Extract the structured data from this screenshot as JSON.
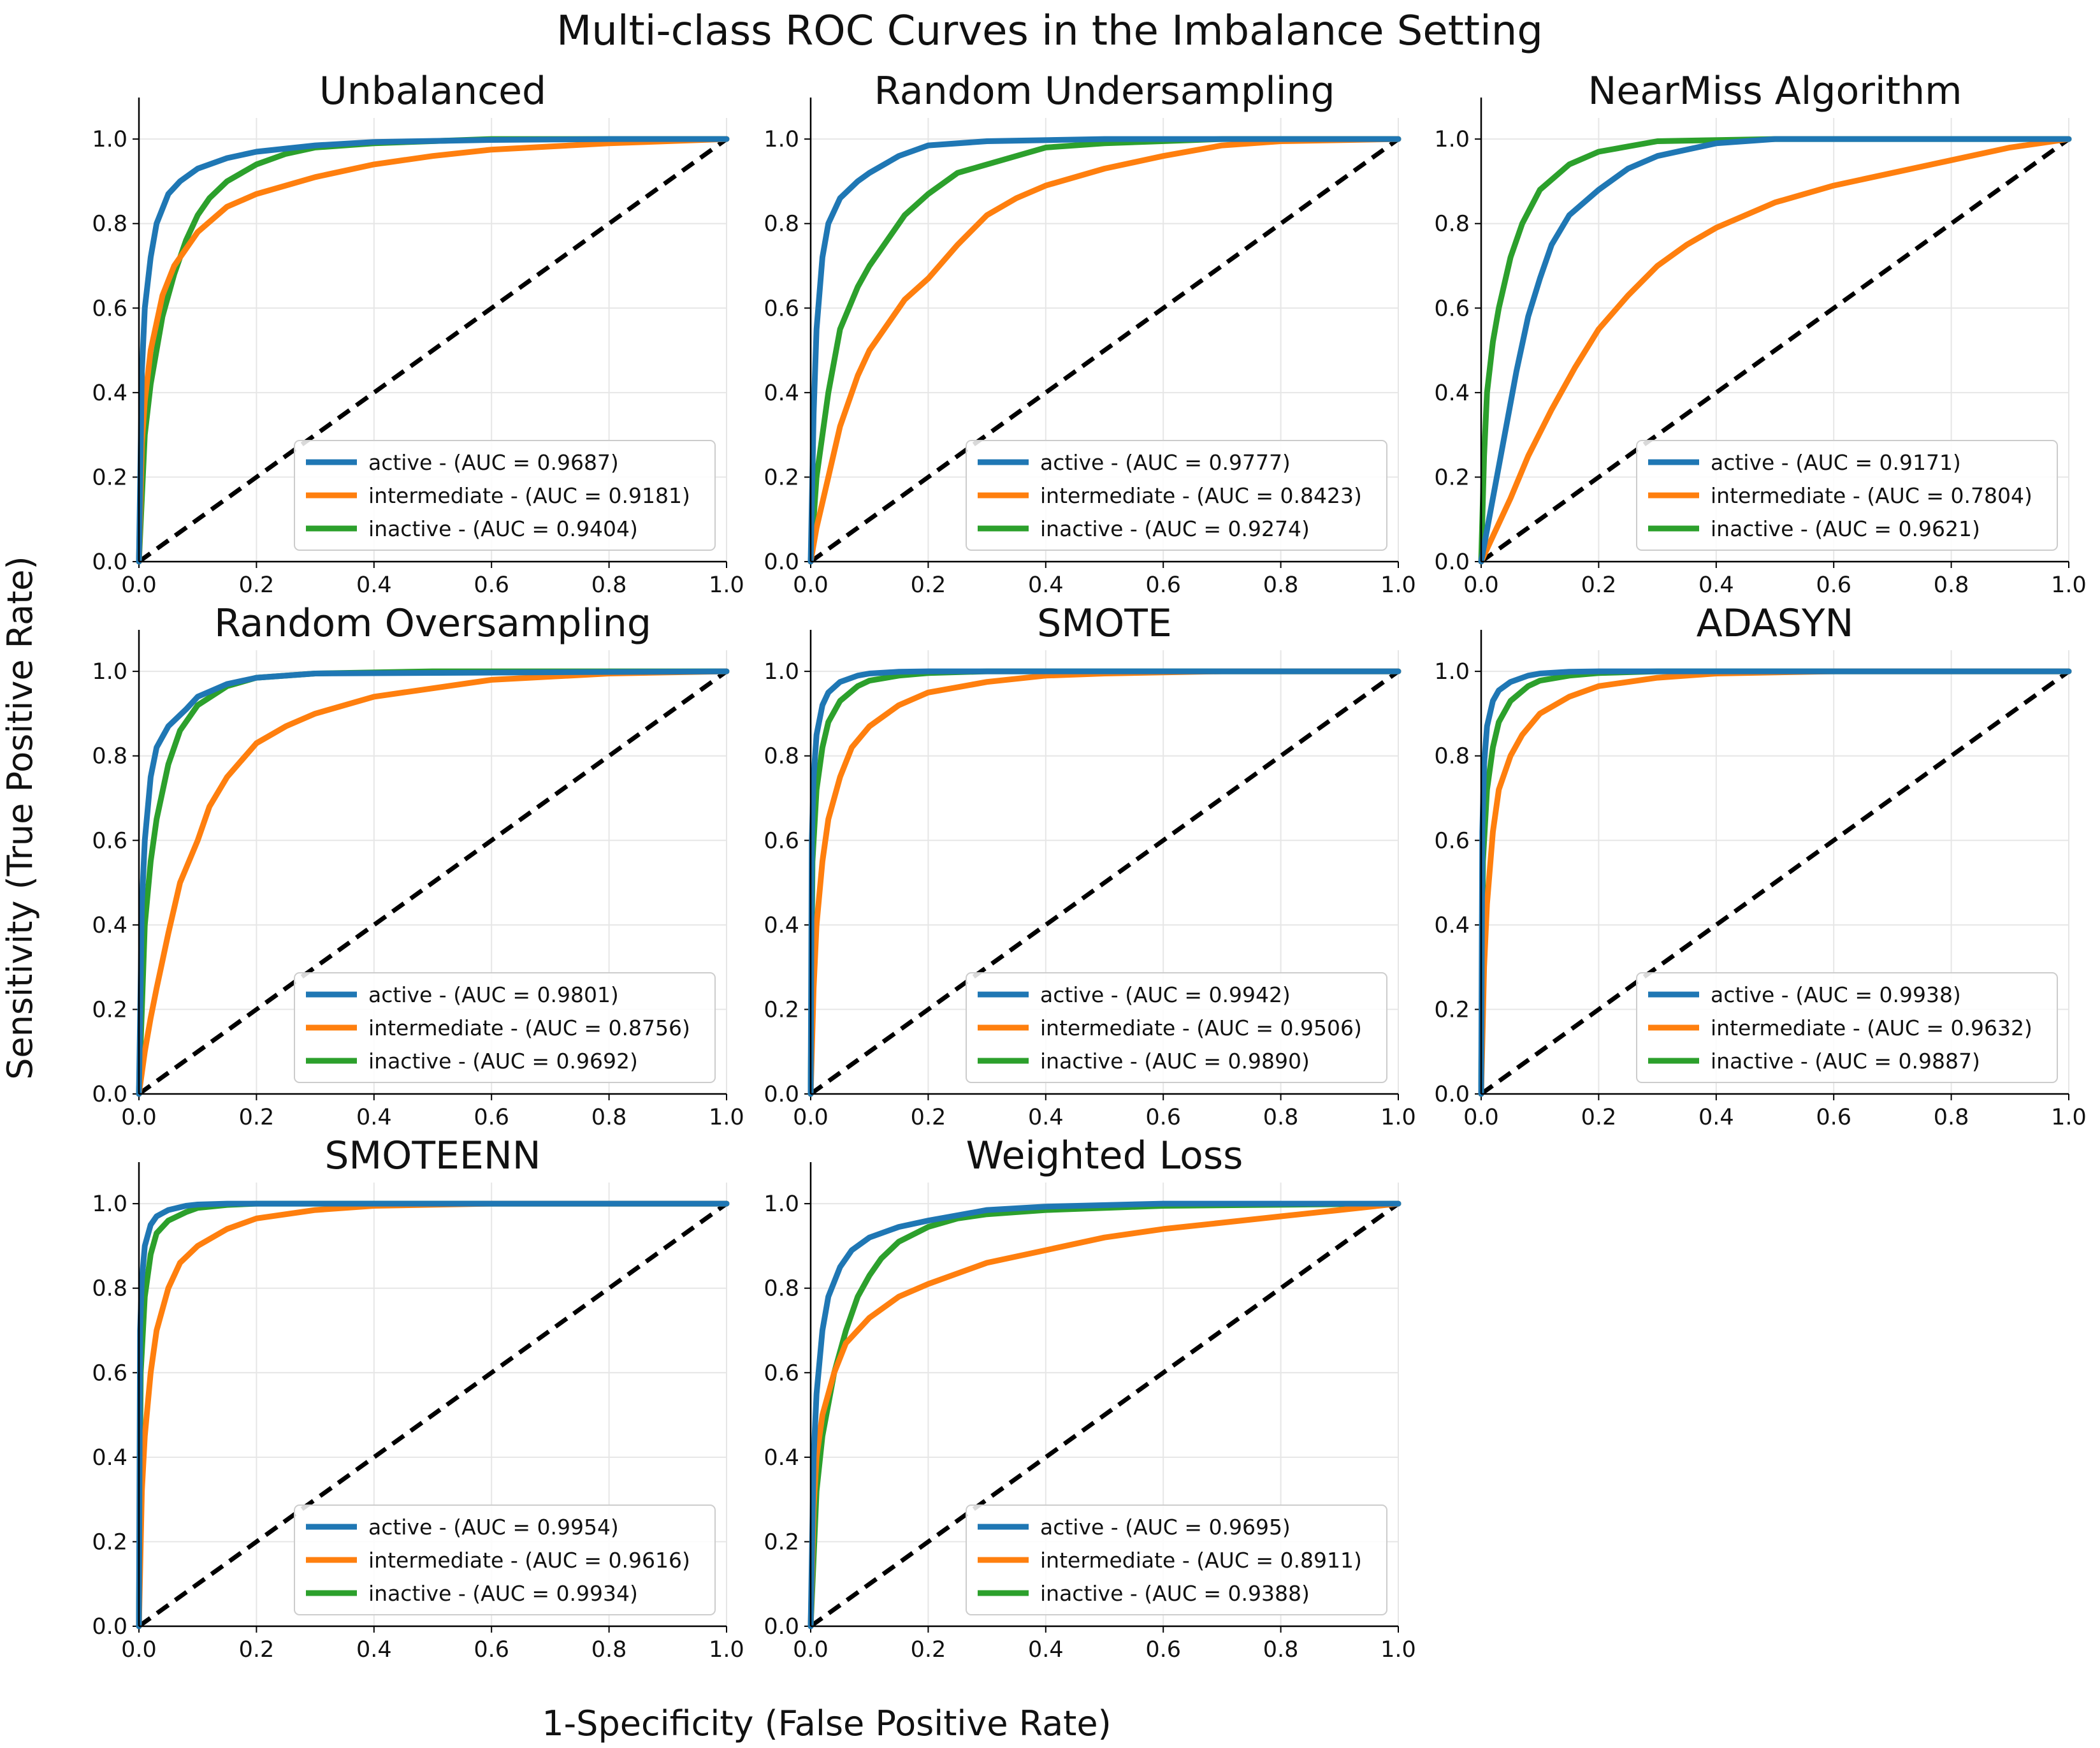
{
  "figure": {
    "title": "Multi-class ROC Curves in the Imbalance Setting",
    "xlabel": "1-Specificity (False Positive Rate)",
    "ylabel": "Sensitivity (True Positive Rate)"
  },
  "colors": {
    "active": "#1f77b4",
    "intermediate": "#ff7f0e",
    "inactive": "#2ca02c",
    "chance": "#000000",
    "grid": "#e6e6e6"
  },
  "chart_data": [
    {
      "type": "line",
      "title": "Unbalanced",
      "xlim": [
        0,
        1
      ],
      "ylim": [
        0,
        1.05
      ],
      "xticks": [
        "0.0",
        "0.2",
        "0.4",
        "0.6",
        "0.8",
        "1.0"
      ],
      "yticks": [
        "0.0",
        "0.2",
        "0.4",
        "0.6",
        "0.8",
        "1.0"
      ],
      "grid": true,
      "legend": "lower-right",
      "series": [
        {
          "name": "active - (AUC = 0.9687)",
          "x": [
            0,
            0.005,
            0.01,
            0.02,
            0.03,
            0.05,
            0.07,
            0.1,
            0.15,
            0.2,
            0.3,
            0.4,
            0.6,
            0.8,
            1
          ],
          "y": [
            0,
            0.45,
            0.6,
            0.72,
            0.8,
            0.87,
            0.9,
            0.93,
            0.955,
            0.97,
            0.985,
            0.993,
            0.998,
            1,
            1
          ]
        },
        {
          "name": "intermediate - (AUC = 0.9181)",
          "x": [
            0,
            0.005,
            0.01,
            0.02,
            0.04,
            0.06,
            0.1,
            0.15,
            0.2,
            0.3,
            0.4,
            0.5,
            0.6,
            0.8,
            1
          ],
          "y": [
            0,
            0.28,
            0.38,
            0.5,
            0.63,
            0.7,
            0.78,
            0.84,
            0.87,
            0.91,
            0.94,
            0.96,
            0.975,
            0.99,
            1
          ]
        },
        {
          "name": "inactive - (AUC = 0.9404)",
          "x": [
            0,
            0.01,
            0.02,
            0.04,
            0.06,
            0.08,
            0.1,
            0.12,
            0.15,
            0.2,
            0.25,
            0.3,
            0.4,
            0.6,
            1
          ],
          "y": [
            0,
            0.3,
            0.42,
            0.58,
            0.68,
            0.76,
            0.82,
            0.86,
            0.9,
            0.94,
            0.965,
            0.98,
            0.99,
            1,
            1
          ]
        }
      ]
    },
    {
      "type": "line",
      "title": "Random Undersampling",
      "xlim": [
        0,
        1
      ],
      "ylim": [
        0,
        1.05
      ],
      "xticks": [
        "0.0",
        "0.2",
        "0.4",
        "0.6",
        "0.8",
        "1.0"
      ],
      "yticks": [
        "0.0",
        "0.2",
        "0.4",
        "0.6",
        "0.8",
        "1.0"
      ],
      "grid": true,
      "legend": "lower-right",
      "series": [
        {
          "name": "active - (AUC = 0.9777)",
          "x": [
            0,
            0.005,
            0.01,
            0.02,
            0.03,
            0.05,
            0.08,
            0.1,
            0.15,
            0.2,
            0.3,
            0.5,
            1
          ],
          "y": [
            0,
            0.35,
            0.55,
            0.72,
            0.8,
            0.86,
            0.9,
            0.92,
            0.96,
            0.985,
            0.995,
            1,
            1
          ]
        },
        {
          "name": "intermediate - (AUC = 0.8423)",
          "x": [
            0,
            0.01,
            0.03,
            0.05,
            0.08,
            0.1,
            0.13,
            0.16,
            0.2,
            0.25,
            0.3,
            0.35,
            0.4,
            0.5,
            0.6,
            0.7,
            0.8,
            1
          ],
          "y": [
            0,
            0.08,
            0.2,
            0.32,
            0.44,
            0.5,
            0.56,
            0.62,
            0.67,
            0.75,
            0.82,
            0.86,
            0.89,
            0.93,
            0.96,
            0.985,
            0.995,
            1
          ]
        },
        {
          "name": "inactive - (AUC = 0.9274)",
          "x": [
            0,
            0.01,
            0.03,
            0.05,
            0.08,
            0.1,
            0.13,
            0.16,
            0.2,
            0.25,
            0.3,
            0.35,
            0.4,
            0.5,
            0.7,
            1
          ],
          "y": [
            0,
            0.2,
            0.4,
            0.55,
            0.65,
            0.7,
            0.76,
            0.82,
            0.87,
            0.92,
            0.94,
            0.96,
            0.98,
            0.99,
            1,
            1
          ]
        }
      ]
    },
    {
      "type": "line",
      "title": "NearMiss Algorithm",
      "xlim": [
        0,
        1
      ],
      "ylim": [
        0,
        1.05
      ],
      "xticks": [
        "0.0",
        "0.2",
        "0.4",
        "0.6",
        "0.8",
        "1.0"
      ],
      "yticks": [
        "0.0",
        "0.2",
        "0.4",
        "0.6",
        "0.8",
        "1.0"
      ],
      "grid": true,
      "legend": "lower-right",
      "series": [
        {
          "name": "active - (AUC = 0.9171)",
          "x": [
            0,
            0.02,
            0.04,
            0.06,
            0.08,
            0.1,
            0.12,
            0.15,
            0.2,
            0.25,
            0.3,
            0.4,
            0.5,
            1
          ],
          "y": [
            0,
            0.15,
            0.3,
            0.45,
            0.58,
            0.67,
            0.75,
            0.82,
            0.88,
            0.93,
            0.96,
            0.99,
            1,
            1
          ]
        },
        {
          "name": "intermediate - (AUC = 0.7804)",
          "x": [
            0,
            0.02,
            0.05,
            0.08,
            0.12,
            0.16,
            0.2,
            0.25,
            0.3,
            0.35,
            0.4,
            0.5,
            0.6,
            0.7,
            0.8,
            0.9,
            0.95,
            1
          ],
          "y": [
            0,
            0.06,
            0.15,
            0.25,
            0.36,
            0.46,
            0.55,
            0.63,
            0.7,
            0.75,
            0.79,
            0.85,
            0.89,
            0.92,
            0.95,
            0.98,
            0.99,
            1
          ]
        },
        {
          "name": "inactive - (AUC = 0.9621)",
          "x": [
            0,
            0.005,
            0.01,
            0.02,
            0.03,
            0.05,
            0.07,
            0.1,
            0.15,
            0.2,
            0.3,
            0.5,
            1
          ],
          "y": [
            0,
            0.25,
            0.4,
            0.52,
            0.6,
            0.72,
            0.8,
            0.88,
            0.94,
            0.97,
            0.995,
            1,
            1
          ]
        }
      ]
    },
    {
      "type": "line",
      "title": "Random Oversampling",
      "xlim": [
        0,
        1
      ],
      "ylim": [
        0,
        1.05
      ],
      "xticks": [
        "0.0",
        "0.2",
        "0.4",
        "0.6",
        "0.8",
        "1.0"
      ],
      "yticks": [
        "0.0",
        "0.2",
        "0.4",
        "0.6",
        "0.8",
        "1.0"
      ],
      "grid": true,
      "legend": "lower-right",
      "series": [
        {
          "name": "active - (AUC = 0.9801)",
          "x": [
            0,
            0.005,
            0.01,
            0.02,
            0.03,
            0.05,
            0.08,
            0.1,
            0.15,
            0.2,
            0.3,
            1
          ],
          "y": [
            0,
            0.45,
            0.6,
            0.75,
            0.82,
            0.87,
            0.91,
            0.94,
            0.97,
            0.985,
            0.995,
            1
          ]
        },
        {
          "name": "intermediate - (AUC = 0.8756)",
          "x": [
            0,
            0.01,
            0.02,
            0.03,
            0.05,
            0.07,
            0.1,
            0.12,
            0.15,
            0.2,
            0.25,
            0.3,
            0.4,
            0.5,
            0.6,
            0.8,
            1
          ],
          "y": [
            0,
            0.1,
            0.18,
            0.25,
            0.38,
            0.5,
            0.6,
            0.68,
            0.75,
            0.83,
            0.87,
            0.9,
            0.94,
            0.96,
            0.98,
            0.995,
            1
          ]
        },
        {
          "name": "inactive - (AUC = 0.9692)",
          "x": [
            0,
            0.01,
            0.02,
            0.03,
            0.05,
            0.07,
            0.1,
            0.15,
            0.2,
            0.3,
            0.5,
            1
          ],
          "y": [
            0,
            0.4,
            0.55,
            0.65,
            0.78,
            0.86,
            0.92,
            0.965,
            0.985,
            0.995,
            1,
            1
          ]
        }
      ]
    },
    {
      "type": "line",
      "title": "SMOTE",
      "xlim": [
        0,
        1
      ],
      "ylim": [
        0,
        1.05
      ],
      "xticks": [
        "0.0",
        "0.2",
        "0.4",
        "0.6",
        "0.8",
        "1.0"
      ],
      "yticks": [
        "0.0",
        "0.2",
        "0.4",
        "0.6",
        "0.8",
        "1.0"
      ],
      "grid": true,
      "legend": "lower-right",
      "series": [
        {
          "name": "active - (AUC = 0.9942)",
          "x": [
            0,
            0.002,
            0.005,
            0.01,
            0.02,
            0.03,
            0.05,
            0.08,
            0.1,
            0.15,
            0.2,
            1
          ],
          "y": [
            0,
            0.6,
            0.75,
            0.85,
            0.92,
            0.95,
            0.975,
            0.99,
            0.995,
            0.999,
            1,
            1
          ]
        },
        {
          "name": "intermediate - (AUC = 0.9506)",
          "x": [
            0,
            0.005,
            0.01,
            0.02,
            0.03,
            0.05,
            0.07,
            0.1,
            0.15,
            0.2,
            0.3,
            0.4,
            0.5,
            0.7,
            1
          ],
          "y": [
            0,
            0.25,
            0.4,
            0.55,
            0.65,
            0.75,
            0.82,
            0.87,
            0.92,
            0.95,
            0.975,
            0.99,
            0.995,
            1,
            1
          ]
        },
        {
          "name": "inactive - (AUC = 0.9890)",
          "x": [
            0,
            0.003,
            0.01,
            0.02,
            0.03,
            0.05,
            0.08,
            0.1,
            0.15,
            0.2,
            0.3,
            1
          ],
          "y": [
            0,
            0.55,
            0.72,
            0.82,
            0.88,
            0.93,
            0.965,
            0.978,
            0.99,
            0.996,
            1,
            1
          ]
        }
      ]
    },
    {
      "type": "line",
      "title": "ADASYN",
      "xlim": [
        0,
        1
      ],
      "ylim": [
        0,
        1.05
      ],
      "xticks": [
        "0.0",
        "0.2",
        "0.4",
        "0.6",
        "0.8",
        "1.0"
      ],
      "yticks": [
        "0.0",
        "0.2",
        "0.4",
        "0.6",
        "0.8",
        "1.0"
      ],
      "grid": true,
      "legend": "lower-right",
      "series": [
        {
          "name": "active - (AUC = 0.9938)",
          "x": [
            0,
            0.002,
            0.005,
            0.01,
            0.02,
            0.03,
            0.05,
            0.08,
            0.1,
            0.15,
            0.2,
            1
          ],
          "y": [
            0,
            0.62,
            0.78,
            0.87,
            0.93,
            0.955,
            0.975,
            0.99,
            0.995,
            0.999,
            1,
            1
          ]
        },
        {
          "name": "intermediate - (AUC = 0.9632)",
          "x": [
            0,
            0.005,
            0.01,
            0.02,
            0.03,
            0.05,
            0.07,
            0.1,
            0.15,
            0.2,
            0.3,
            0.4,
            0.6,
            1
          ],
          "y": [
            0,
            0.3,
            0.45,
            0.62,
            0.72,
            0.8,
            0.85,
            0.9,
            0.94,
            0.965,
            0.985,
            0.995,
            1,
            1
          ]
        },
        {
          "name": "inactive - (AUC = 0.9887)",
          "x": [
            0,
            0.003,
            0.01,
            0.02,
            0.03,
            0.05,
            0.08,
            0.1,
            0.15,
            0.2,
            0.3,
            1
          ],
          "y": [
            0,
            0.55,
            0.72,
            0.82,
            0.88,
            0.93,
            0.965,
            0.978,
            0.99,
            0.996,
            1,
            1
          ]
        }
      ]
    },
    {
      "type": "line",
      "title": "SMOTEENN",
      "xlim": [
        0,
        1
      ],
      "ylim": [
        0,
        1.05
      ],
      "xticks": [
        "0.0",
        "0.2",
        "0.4",
        "0.6",
        "0.8",
        "1.0"
      ],
      "yticks": [
        "0.0",
        "0.2",
        "0.4",
        "0.6",
        "0.8",
        "1.0"
      ],
      "grid": true,
      "legend": "lower-right",
      "series": [
        {
          "name": "active - (AUC = 0.9954)",
          "x": [
            0,
            0.002,
            0.005,
            0.01,
            0.02,
            0.03,
            0.05,
            0.08,
            0.1,
            0.15,
            1
          ],
          "y": [
            0,
            0.7,
            0.82,
            0.9,
            0.95,
            0.97,
            0.985,
            0.995,
            0.998,
            1,
            1
          ]
        },
        {
          "name": "intermediate - (AUC = 0.9616)",
          "x": [
            0,
            0.005,
            0.01,
            0.02,
            0.03,
            0.05,
            0.07,
            0.1,
            0.15,
            0.2,
            0.3,
            0.4,
            0.6,
            1
          ],
          "y": [
            0,
            0.32,
            0.45,
            0.6,
            0.7,
            0.8,
            0.86,
            0.9,
            0.94,
            0.965,
            0.985,
            0.995,
            1,
            1
          ]
        },
        {
          "name": "inactive - (AUC = 0.9934)",
          "x": [
            0,
            0.003,
            0.01,
            0.02,
            0.03,
            0.05,
            0.08,
            0.1,
            0.15,
            0.2,
            1
          ],
          "y": [
            0,
            0.6,
            0.78,
            0.88,
            0.93,
            0.96,
            0.98,
            0.99,
            0.997,
            1,
            1
          ]
        }
      ]
    },
    {
      "type": "line",
      "title": "Weighted Loss",
      "xlim": [
        0,
        1
      ],
      "ylim": [
        0,
        1.05
      ],
      "xticks": [
        "0.0",
        "0.2",
        "0.4",
        "0.6",
        "0.8",
        "1.0"
      ],
      "yticks": [
        "0.0",
        "0.2",
        "0.4",
        "0.6",
        "0.8",
        "1.0"
      ],
      "grid": true,
      "legend": "lower-right",
      "series": [
        {
          "name": "active - (AUC = 0.9695)",
          "x": [
            0,
            0.005,
            0.01,
            0.02,
            0.03,
            0.05,
            0.07,
            0.1,
            0.15,
            0.2,
            0.3,
            0.4,
            0.6,
            1
          ],
          "y": [
            0,
            0.4,
            0.55,
            0.7,
            0.78,
            0.85,
            0.89,
            0.92,
            0.945,
            0.96,
            0.985,
            0.993,
            1,
            1
          ]
        },
        {
          "name": "intermediate - (AUC = 0.8911)",
          "x": [
            0,
            0.005,
            0.01,
            0.02,
            0.04,
            0.06,
            0.1,
            0.15,
            0.2,
            0.3,
            0.4,
            0.5,
            0.6,
            0.7,
            0.8,
            0.9,
            1
          ],
          "y": [
            0,
            0.28,
            0.4,
            0.5,
            0.6,
            0.67,
            0.73,
            0.78,
            0.81,
            0.86,
            0.89,
            0.92,
            0.94,
            0.955,
            0.97,
            0.985,
            1
          ]
        },
        {
          "name": "inactive - (AUC = 0.9388)",
          "x": [
            0,
            0.01,
            0.02,
            0.04,
            0.06,
            0.08,
            0.1,
            0.12,
            0.15,
            0.2,
            0.25,
            0.3,
            0.4,
            0.6,
            1
          ],
          "y": [
            0,
            0.32,
            0.45,
            0.6,
            0.7,
            0.78,
            0.83,
            0.87,
            0.91,
            0.945,
            0.965,
            0.975,
            0.985,
            0.995,
            1
          ]
        }
      ]
    }
  ]
}
